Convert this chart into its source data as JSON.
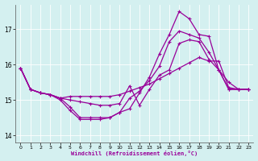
{
  "xlabel": "Windchill (Refroidissement éolien,°C)",
  "bg_color": "#d4f0f0",
  "grid_color": "#ffffff",
  "line_color": "#990099",
  "xlim": [
    -0.5,
    23.5
  ],
  "ylim": [
    13.8,
    17.7
  ],
  "yticks": [
    14,
    15,
    16,
    17
  ],
  "xticks": [
    0,
    1,
    2,
    3,
    4,
    5,
    6,
    7,
    8,
    9,
    10,
    11,
    12,
    13,
    14,
    15,
    16,
    17,
    18,
    19,
    20,
    21,
    22,
    23
  ],
  "series": [
    [
      15.9,
      15.3,
      15.2,
      15.15,
      15.05,
      15.1,
      15.1,
      15.1,
      15.1,
      15.1,
      15.15,
      15.25,
      15.35,
      15.45,
      15.6,
      15.75,
      15.9,
      16.05,
      16.2,
      16.1,
      16.1,
      15.35,
      15.3,
      15.3
    ],
    [
      15.9,
      15.3,
      15.2,
      15.15,
      15.0,
      14.7,
      14.45,
      14.45,
      14.45,
      14.5,
      14.65,
      14.75,
      15.2,
      15.65,
      16.3,
      16.85,
      17.5,
      17.3,
      16.85,
      16.8,
      15.85,
      15.5,
      15.3,
      15.3
    ],
    [
      15.9,
      15.3,
      15.2,
      15.15,
      15.05,
      14.8,
      14.5,
      14.5,
      14.5,
      14.5,
      14.65,
      15.05,
      15.25,
      15.55,
      15.95,
      16.65,
      16.95,
      16.85,
      16.75,
      16.35,
      15.85,
      15.3,
      15.3,
      15.3
    ],
    [
      15.9,
      15.3,
      15.2,
      15.15,
      15.05,
      15.0,
      14.95,
      14.9,
      14.85,
      14.85,
      14.9,
      15.4,
      14.85,
      15.3,
      15.7,
      15.85,
      16.6,
      16.7,
      16.65,
      16.15,
      15.85,
      15.3,
      15.3,
      15.3
    ]
  ],
  "marker": "+",
  "markersize": 3,
  "linewidth": 0.9
}
